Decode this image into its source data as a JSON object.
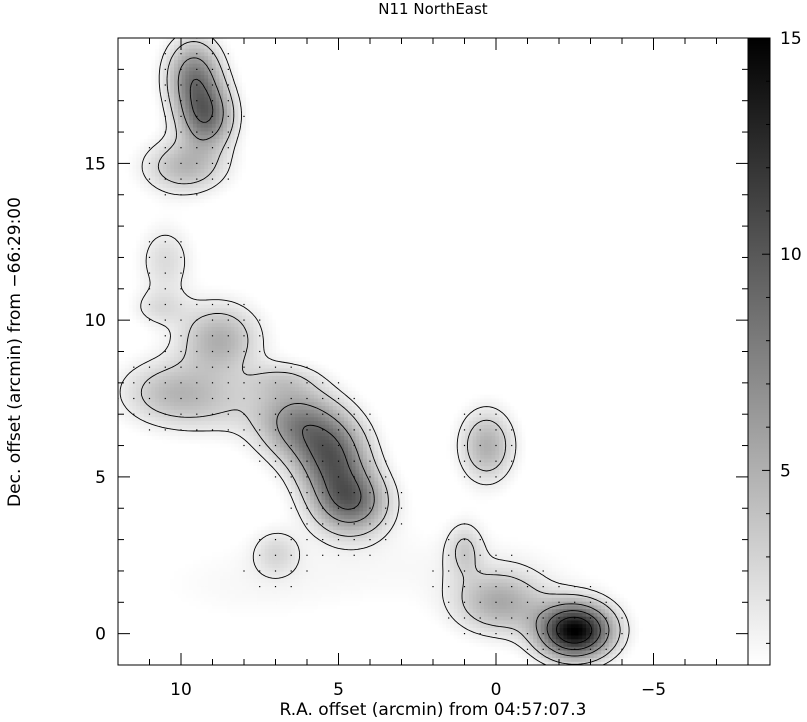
{
  "chart_data": {
    "type": "heatmap",
    "title": "N11 NorthEast",
    "xlabel": "R.A. offset (arcmin) from 04:57:07.3",
    "ylabel": "Dec. offset (arcmin) from −66:29:00",
    "xlim": [
      12,
      -8
    ],
    "ylim": [
      -1,
      19
    ],
    "x_ticks": [
      10,
      5,
      0,
      -5
    ],
    "x_tick_labels": [
      "10",
      "5",
      "0",
      "−5"
    ],
    "y_ticks": [
      0,
      5,
      10,
      15
    ],
    "y_tick_labels": [
      "0",
      "5",
      "10",
      "15"
    ],
    "colorbar": {
      "range": [
        0.5,
        15
      ],
      "ticks": [
        5,
        10,
        15
      ],
      "tick_labels": [
        "5",
        "10",
        "15"
      ],
      "colormap": "grayscale (white=low, black=high)"
    },
    "contour_levels": [
      1.5,
      3,
      6,
      9,
      12
    ],
    "sampled_points_marked": true,
    "emission_sources": [
      {
        "ra": 9.6,
        "dec": 17.8,
        "peak": 7.5,
        "width_ra": 0.6,
        "width_dec": 0.8
      },
      {
        "ra": 9.2,
        "dec": 16.5,
        "peak": 8.0,
        "width_ra": 0.6,
        "width_dec": 0.7
      },
      {
        "ra": 9.9,
        "dec": 14.9,
        "peak": 4.5,
        "width_ra": 0.9,
        "width_dec": 0.6
      },
      {
        "ra": 10.5,
        "dec": 11.9,
        "peak": 2.5,
        "width_ra": 0.6,
        "width_dec": 0.8
      },
      {
        "ra": 10.7,
        "dec": 10.4,
        "peak": 2.0,
        "width_ra": 0.6,
        "width_dec": 0.4
      },
      {
        "ra": 8.8,
        "dec": 9.4,
        "peak": 5.0,
        "width_ra": 0.9,
        "width_dec": 0.8
      },
      {
        "ra": 10.4,
        "dec": 7.8,
        "peak": 3.2,
        "width_ra": 1.1,
        "width_dec": 0.7
      },
      {
        "ra": 9.0,
        "dec": 7.3,
        "peak": 2.4,
        "width_ra": 1.5,
        "width_dec": 0.7
      },
      {
        "ra": 6.8,
        "dec": 8.1,
        "peak": 2.2,
        "width_ra": 0.8,
        "width_dec": 0.4
      },
      {
        "ra": 6.3,
        "dec": 6.7,
        "peak": 6.5,
        "width_ra": 0.9,
        "width_dec": 0.8
      },
      {
        "ra": 5.2,
        "dec": 5.6,
        "peak": 8.5,
        "width_ra": 0.8,
        "width_dec": 0.9
      },
      {
        "ra": 4.6,
        "dec": 4.2,
        "peak": 8.0,
        "width_ra": 0.8,
        "width_dec": 0.7
      },
      {
        "ra": 0.3,
        "dec": 6.0,
        "peak": 5.0,
        "width_ra": 0.6,
        "width_dec": 0.8
      },
      {
        "ra": 1.0,
        "dec": 2.7,
        "peak": 2.8,
        "width_ra": 0.4,
        "width_dec": 0.6
      },
      {
        "ra": -0.1,
        "dec": 1.0,
        "peak": 5.0,
        "width_ra": 1.0,
        "width_dec": 0.7
      },
      {
        "ra": 7.0,
        "dec": 2.6,
        "peak": 2.2,
        "width_ra": 0.5,
        "width_dec": 0.5
      },
      {
        "ra": -2.5,
        "dec": 0.1,
        "peak": 15.0,
        "width_ra": 0.8,
        "width_dec": 0.6
      },
      {
        "ra": 2.0,
        "dec": 2.2,
        "peak": 0.8,
        "width_ra": 4.0,
        "width_dec": 1.0
      },
      {
        "ra": 8.0,
        "dec": 1.5,
        "peak": 0.7,
        "width_ra": 2.5,
        "width_dec": 1.0
      }
    ]
  }
}
